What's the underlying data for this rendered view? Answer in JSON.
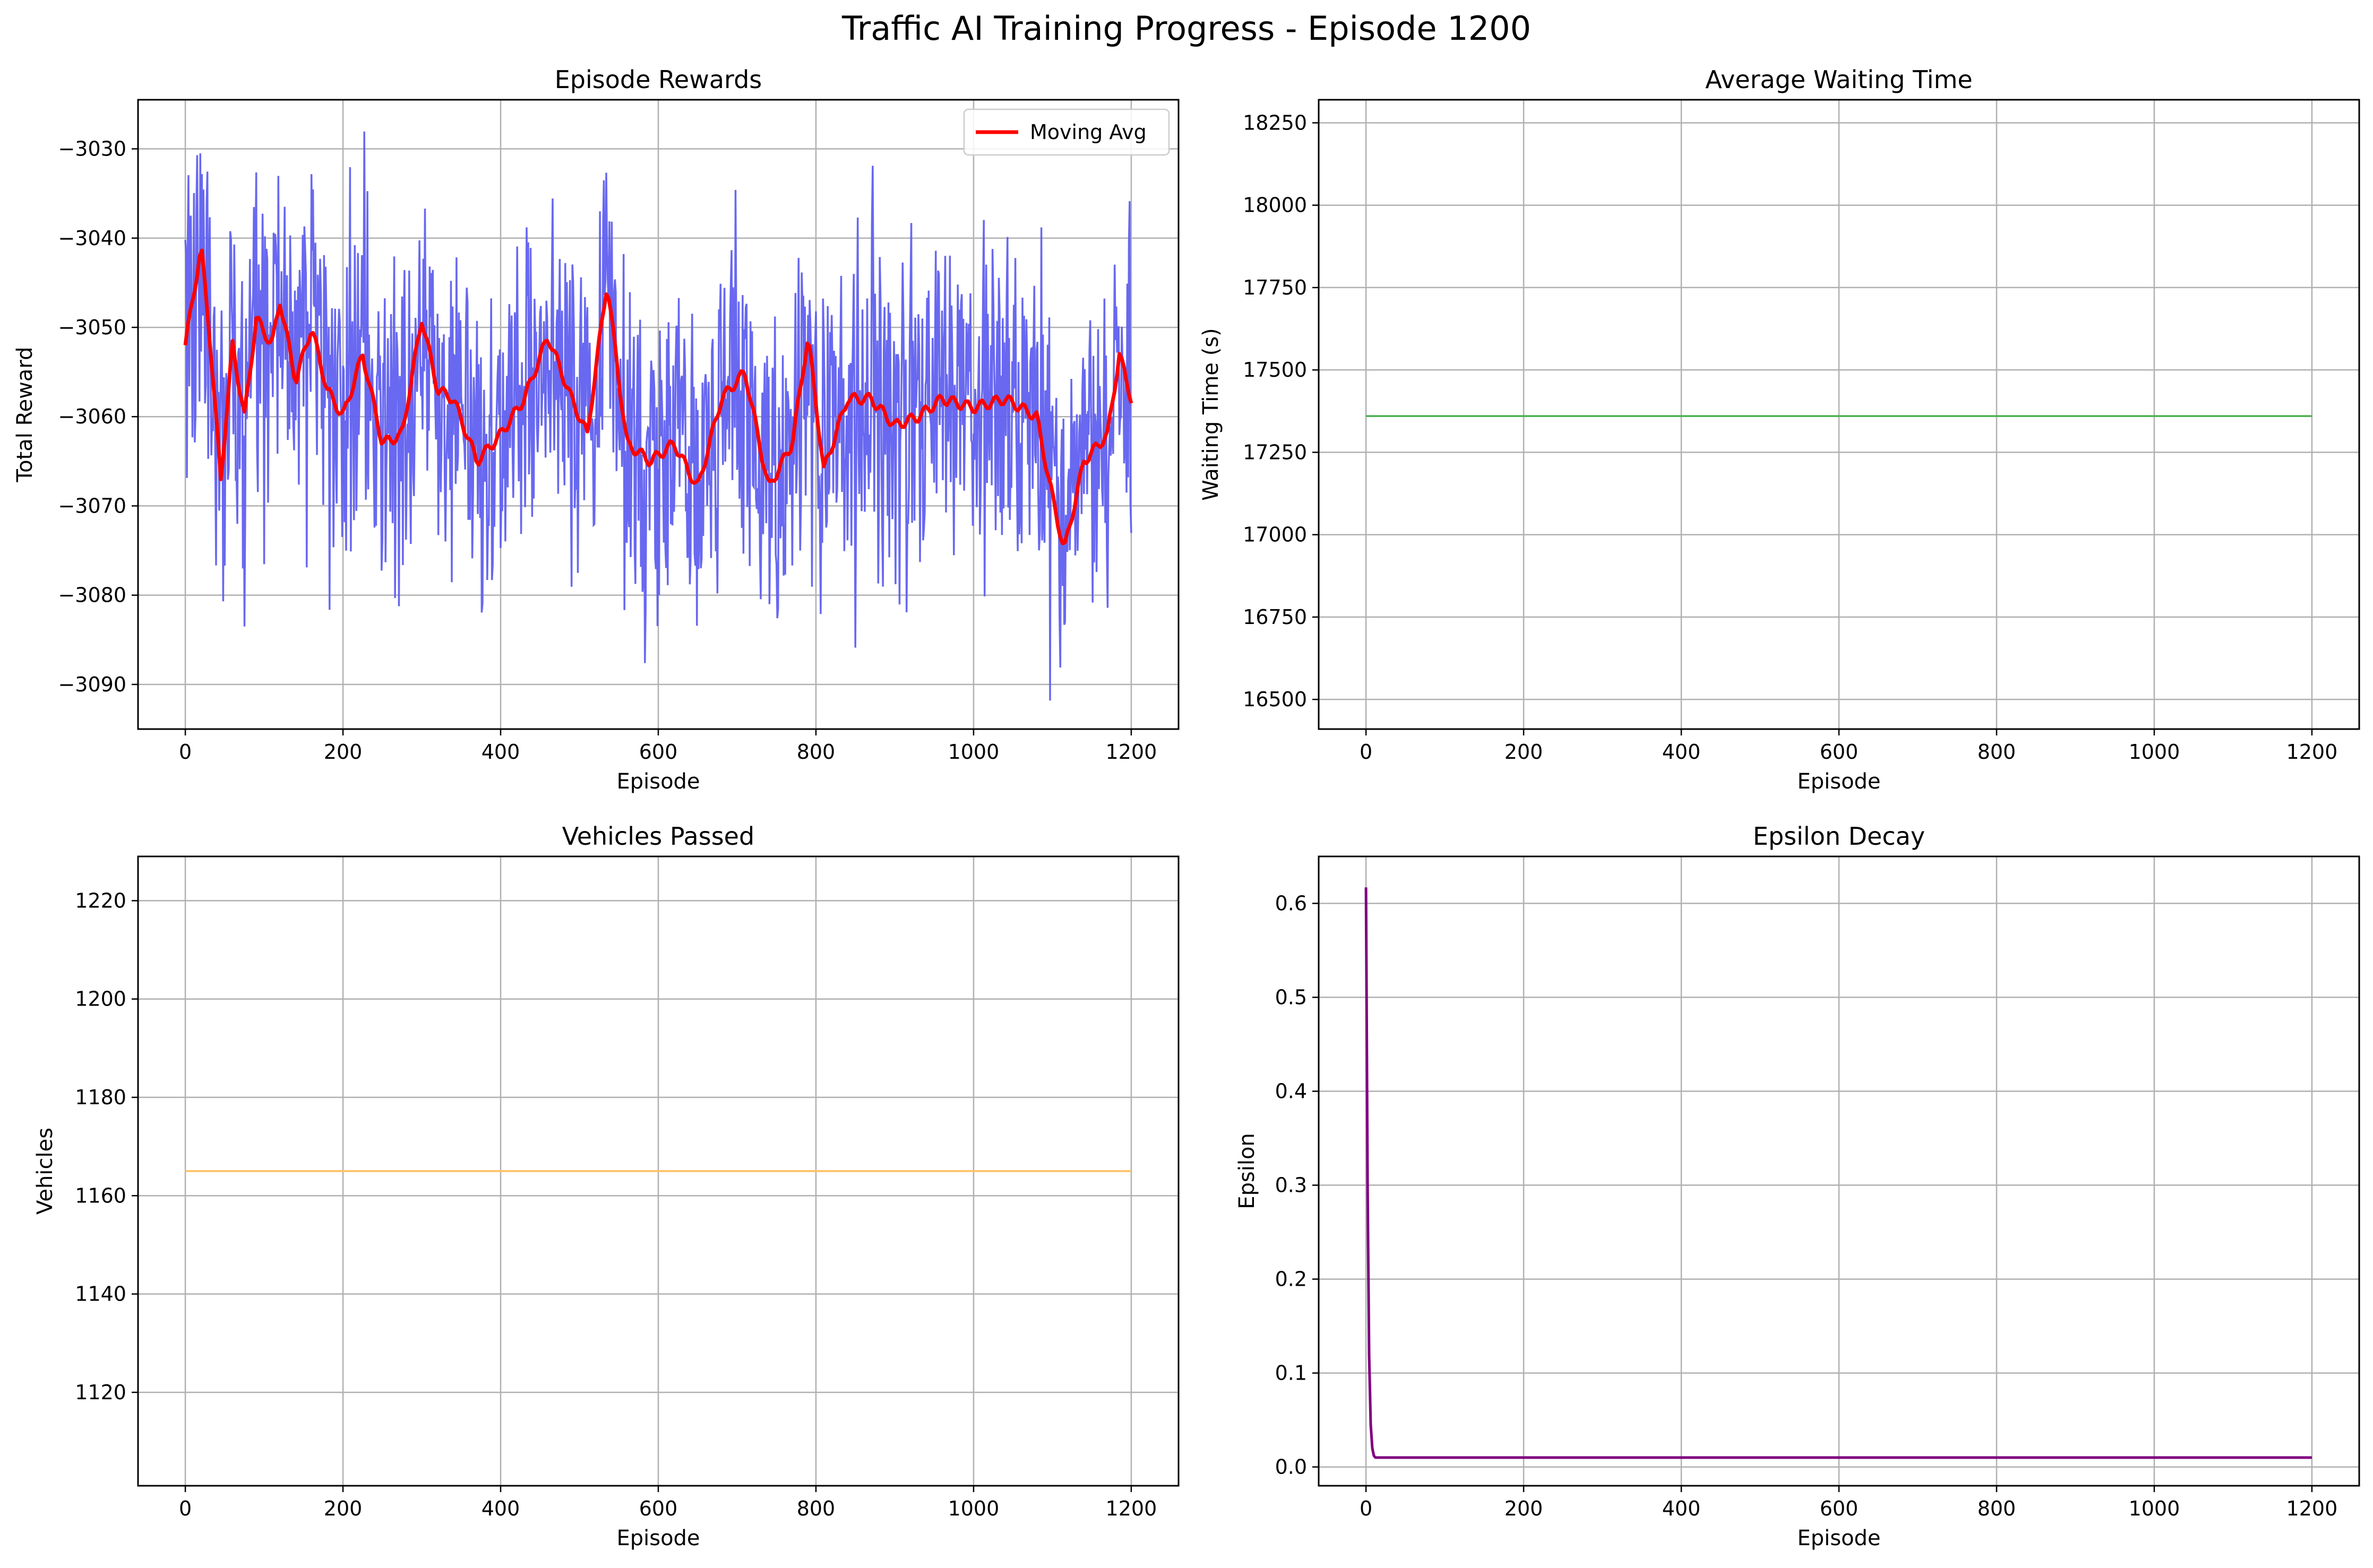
{
  "figure": {
    "title": "Traffic AI Training Progress - Episode 1200"
  },
  "colors": {
    "reward_raw": "#6060f0",
    "reward_avg": "#ff0000",
    "waiting": "#4caf50",
    "vehicles": "#ffbf60",
    "epsilon": "#800080",
    "grid": "#b0b0b0"
  },
  "chart_data": [
    {
      "id": "rewards",
      "type": "line",
      "title": "Episode Rewards",
      "xlabel": "Episode",
      "ylabel": "Total Reward",
      "xlim": [
        -60,
        1260
      ],
      "ylim": [
        -3095,
        -3024.5
      ],
      "xticks": [
        0,
        200,
        400,
        600,
        800,
        1000,
        1200
      ],
      "yticks": [
        -3090,
        -3080,
        -3070,
        -3060,
        -3050,
        -3040,
        -3030
      ],
      "grid": true,
      "legend": {
        "position": "top-right",
        "entries": [
          "Moving Avg"
        ]
      },
      "series": [
        {
          "key": "raw",
          "episodes": [
            0,
            1200
          ],
          "range": [
            -3091.8,
            -3027.6
          ],
          "mean": -3058,
          "note_points": 1200
        },
        {
          "key": "avg",
          "name": "Moving Avg",
          "x": [
            0,
            20,
            30,
            45,
            60,
            75,
            90,
            110,
            120,
            140,
            160,
            180,
            200,
            225,
            250,
            275,
            300,
            320,
            340,
            370,
            400,
            430,
            460,
            490,
            510,
            535,
            560,
            590,
            620,
            650,
            680,
            710,
            740,
            770,
            790,
            810,
            840,
            870,
            900,
            930,
            960,
            1000,
            1040,
            1080,
            1100,
            1115,
            1140,
            1170,
            1185,
            1200
          ],
          "y": [
            -3052,
            -3041,
            -3050,
            -3067,
            -3052,
            -3060,
            -3049,
            -3052,
            -3047,
            -3056,
            -3050,
            -3057,
            -3060,
            -3053,
            -3063,
            -3062,
            -3049,
            -3057,
            -3058,
            -3065,
            -3062,
            -3058,
            -3051,
            -3058,
            -3062,
            -3045,
            -3063,
            -3065,
            -3063,
            -3068,
            -3058,
            -3055,
            -3068,
            -3063,
            -3051,
            -3066,
            -3058,
            -3058,
            -3061,
            -3060,
            -3058,
            -3059,
            -3058,
            -3060,
            -3069,
            -3075,
            -3065,
            -3062,
            -3053,
            -3058
          ]
        }
      ]
    },
    {
      "id": "waiting",
      "type": "line",
      "title": "Average Waiting Time",
      "xlabel": "Episode",
      "ylabel": "Waiting Time (s)",
      "xlim": [
        -60,
        1260
      ],
      "ylim": [
        16410,
        18320
      ],
      "xticks": [
        0,
        200,
        400,
        600,
        800,
        1000,
        1200
      ],
      "yticks": [
        16500,
        16750,
        17000,
        17250,
        17500,
        17750,
        18000,
        18250
      ],
      "grid": true,
      "series": [
        {
          "x": [
            0,
            1200
          ],
          "y": [
            17360,
            17360
          ]
        }
      ]
    },
    {
      "id": "vehicles",
      "type": "line",
      "title": "Vehicles Passed",
      "xlabel": "Episode",
      "ylabel": "Vehicles",
      "xlim": [
        -60,
        1260
      ],
      "ylim": [
        1101,
        1229
      ],
      "xticks": [
        0,
        200,
        400,
        600,
        800,
        1000,
        1200
      ],
      "yticks": [
        1120,
        1140,
        1160,
        1180,
        1200,
        1220
      ],
      "grid": true,
      "series": [
        {
          "x": [
            0,
            1200
          ],
          "y": [
            1165,
            1165
          ]
        }
      ]
    },
    {
      "id": "epsilon",
      "type": "line",
      "title": "Epsilon Decay",
      "xlabel": "Episode",
      "ylabel": "Epsilon",
      "xlim": [
        -60,
        1260
      ],
      "ylim": [
        -0.02,
        0.65
      ],
      "xticks": [
        0,
        200,
        400,
        600,
        800,
        1000,
        1200
      ],
      "yticks": [
        0.0,
        0.1,
        0.2,
        0.3,
        0.4,
        0.5,
        0.6
      ],
      "ytick_labels": [
        "0.0",
        "0.1",
        "0.2",
        "0.3",
        "0.4",
        "0.5",
        "0.6"
      ],
      "grid": true,
      "series": [
        {
          "x": [
            0,
            2,
            4,
            6,
            8,
            10,
            12,
            1200
          ],
          "y": [
            0.617,
            0.3,
            0.12,
            0.045,
            0.02,
            0.012,
            0.01,
            0.01
          ]
        }
      ]
    }
  ]
}
